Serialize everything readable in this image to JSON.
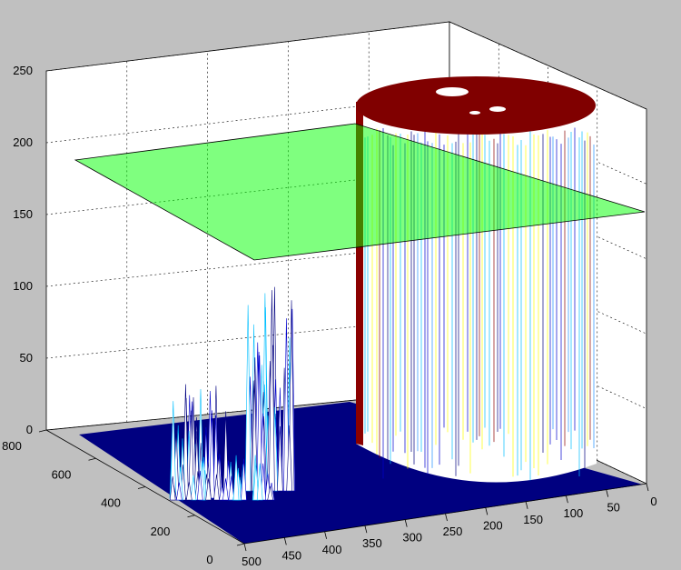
{
  "figure": {
    "background": "#c0c0c0",
    "axes_background": "#ffffff"
  },
  "chart_data": {
    "type": "surface",
    "title": "",
    "grid": true,
    "view": "3d",
    "z_ticks": [
      "0",
      "50",
      "100",
      "150",
      "200",
      "250"
    ],
    "zlim": [
      0,
      250
    ],
    "y_ticks": [
      "0",
      "200",
      "400",
      "600",
      "800"
    ],
    "ylim": [
      0,
      800
    ],
    "x_ticks": [
      "0",
      "50",
      "100",
      "150",
      "200",
      "250",
      "300",
      "350",
      "400",
      "450",
      "500"
    ],
    "xlim": [
      0,
      500
    ],
    "threshold_plane": {
      "z": 150,
      "color": "#00ff00"
    },
    "surface": {
      "base_level": 0,
      "base_color": "#000080",
      "plateau_level": 250,
      "plateau_color": "#800000",
      "peak_level_approx": 110
    }
  }
}
